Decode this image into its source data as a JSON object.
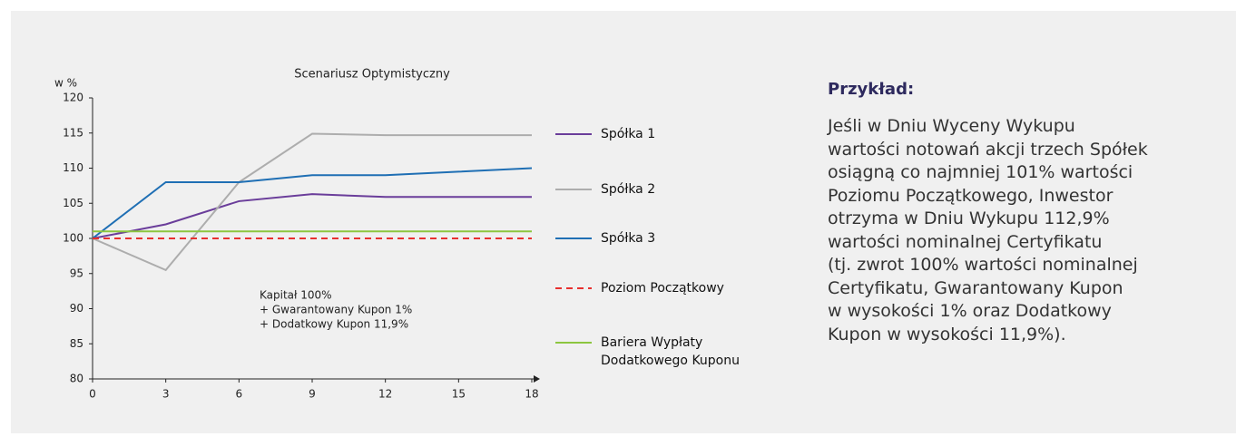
{
  "chart_data": {
    "type": "line",
    "title": "Scenariusz  Optymistyczny",
    "y_label": "w %",
    "annotation": [
      "Kapitał 100%",
      "+ Gwarantowany Kupon 1%",
      "+ Dodatkowy Kupon 11,9%"
    ],
    "x": [
      0,
      3,
      6,
      9,
      12,
      15,
      18
    ],
    "series": [
      {
        "name": "Spółka 1",
        "color": "#6a3d9a",
        "values": [
          100,
          102,
          105.3,
          106.3,
          105.9,
          105.9,
          105.9
        ]
      },
      {
        "name": "Spółka 2",
        "color": "#adadad",
        "values": [
          100,
          95.5,
          108,
          114.9,
          114.7,
          114.7,
          114.7
        ]
      },
      {
        "name": "Spółka 3",
        "color": "#1f6fb4",
        "values": [
          100,
          108,
          108,
          109,
          109,
          109.5,
          110
        ]
      },
      {
        "name": "Poziom Początkowy",
        "color": "#e8302f",
        "dashed": true,
        "values": [
          100,
          100,
          100,
          100,
          100,
          100,
          100
        ]
      },
      {
        "name": "Bariera Wypłaty Dodatkowego Kuponu",
        "color": "#8cc63f",
        "values": [
          101,
          101,
          101,
          101,
          101,
          101,
          101
        ]
      }
    ],
    "xlim": [
      0,
      18
    ],
    "xticks": [
      0,
      3,
      6,
      9,
      12,
      15,
      18
    ],
    "ylim": [
      80,
      120
    ],
    "yticks": [
      80,
      85,
      90,
      95,
      100,
      105,
      110,
      115,
      120
    ],
    "grid": false,
    "legend": "right"
  },
  "side": {
    "heading": "Przykład:",
    "lines": [
      "Jeśli w Dniu Wyceny Wykupu",
      "wartości notowań akcji trzech Spółek",
      "osiągną co najmniej 101% wartości",
      "Poziomu Początkowego, Inwestor",
      "otrzyma w Dniu Wykupu 112,9%",
      "wartości nominalnej Certyfikatu",
      "(tj. zwrot 100% wartości nominalnej",
      "Certyfikatu, Gwarantowany Kupon",
      "w wysokości 1% oraz Dodatkowy",
      "Kupon w wysokości 11,9%)."
    ]
  }
}
